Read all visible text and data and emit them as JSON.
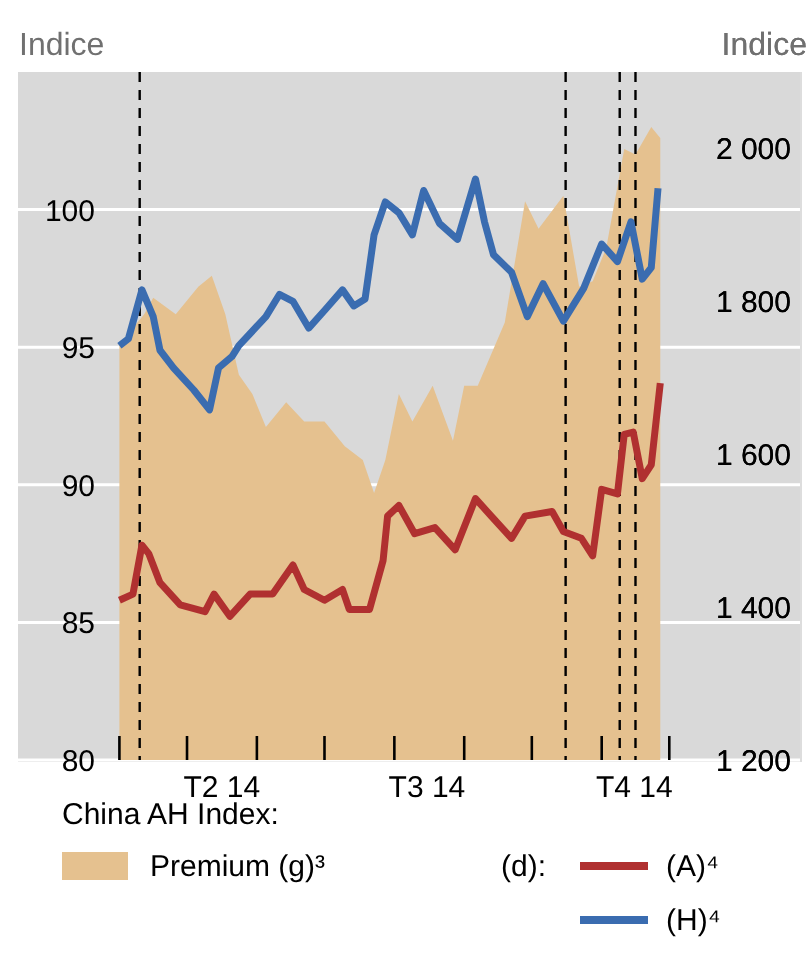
{
  "chart_data": {
    "type": "line",
    "ylabel": "Indice",
    "y2label": "Indice",
    "legend_title": "China AH Index:",
    "annotations": [
      "(d):"
    ],
    "xlim": [
      "2014-02-15",
      "2015-01-28"
    ],
    "xticks": [
      {
        "value": "2014-04-01",
        "label": null
      },
      {
        "value": "2014-05-01",
        "label": null
      },
      {
        "value": "2014-05-16",
        "label": "T2 14"
      },
      {
        "value": "2014-06-01",
        "label": null
      },
      {
        "value": "2014-07-01",
        "label": null
      },
      {
        "value": "2014-08-01",
        "label": null
      },
      {
        "value": "2014-08-15",
        "label": "T3 14"
      },
      {
        "value": "2014-09-01",
        "label": null
      },
      {
        "value": "2014-10-01",
        "label": null
      },
      {
        "value": "2014-11-01",
        "label": null
      },
      {
        "value": "2014-11-15",
        "label": "T4 14"
      },
      {
        "value": "2014-12-01",
        "label": null
      }
    ],
    "ylim": [
      80,
      105
    ],
    "yticks": [
      80,
      85,
      90,
      95,
      100
    ],
    "y2lim": [
      1200,
      2100
    ],
    "y2ticks": [
      {
        "value": 1200,
        "label": "1 200"
      },
      {
        "value": 1400,
        "label": "1 400"
      },
      {
        "value": 1600,
        "label": "1 600"
      },
      {
        "value": 1800,
        "label": "1 800"
      },
      {
        "value": 2000,
        "label": "2 000"
      }
    ],
    "grid": "y",
    "legend": "bottom",
    "line_style": "solid",
    "ref_lines": [
      {
        "axis": "x",
        "value": "2014-04-10",
        "color": "#000000",
        "line_style": "dashed"
      },
      {
        "axis": "x",
        "value": "2014-10-16",
        "color": "#000000",
        "line_style": "dashed"
      },
      {
        "axis": "x",
        "value": "2014-11-09",
        "color": "#000000",
        "line_style": "dashed"
      },
      {
        "axis": "x",
        "value": "2014-11-16",
        "color": "#000000",
        "line_style": "dashed"
      }
    ],
    "series": [
      {
        "name": "Premium (g)³",
        "type": "area",
        "color": "#e5c18f",
        "x": [
          "2014-04-01",
          "2014-04-12",
          "2014-04-16",
          "2014-04-26",
          "2014-05-06",
          "2014-05-12",
          "2014-05-18",
          "2014-05-24",
          "2014-05-30",
          "2014-06-05",
          "2014-06-14",
          "2014-06-22",
          "2014-07-01",
          "2014-07-10",
          "2014-07-18",
          "2014-07-23",
          "2014-07-28",
          "2014-08-03",
          "2014-08-09",
          "2014-08-18",
          "2014-08-27",
          "2014-09-01",
          "2014-09-07",
          "2014-09-19",
          "2014-09-28",
          "2014-10-04",
          "2014-10-15",
          "2014-10-22",
          "2014-10-28",
          "2014-11-03",
          "2014-11-11",
          "2014-11-16",
          "2014-11-23",
          "2014-11-27"
        ],
        "values": [
          95.1,
          96.2,
          96.8,
          96.2,
          97.2,
          97.6,
          96.2,
          94.0,
          93.3,
          92.1,
          93.0,
          92.3,
          92.3,
          91.4,
          90.9,
          89.7,
          90.9,
          93.3,
          92.3,
          93.6,
          91.6,
          93.6,
          93.6,
          95.9,
          100.3,
          99.3,
          100.5,
          97.2,
          97.4,
          98.6,
          102.2,
          102.0,
          103.0,
          102.6
        ]
      },
      {
        "name": "(A)⁴",
        "axis": "y2",
        "color": "#b03030",
        "x": [
          "2014-04-01",
          "2014-04-07",
          "2014-04-11",
          "2014-04-14",
          "2014-04-19",
          "2014-04-28",
          "2014-05-09",
          "2014-05-13",
          "2014-05-20",
          "2014-05-29",
          "2014-06-08",
          "2014-06-17",
          "2014-06-22",
          "2014-07-01",
          "2014-07-09",
          "2014-07-12",
          "2014-07-21",
          "2014-07-27",
          "2014-07-29",
          "2014-08-03",
          "2014-08-10",
          "2014-08-19",
          "2014-08-28",
          "2014-09-06",
          "2014-09-13",
          "2014-09-22",
          "2014-09-28",
          "2014-10-10",
          "2014-10-15",
          "2014-10-23",
          "2014-10-28",
          "2014-11-01",
          "2014-11-08",
          "2014-11-11",
          "2014-11-15",
          "2014-11-19",
          "2014-11-23",
          "2014-11-27"
        ],
        "values": [
          1409,
          1417,
          1481,
          1470,
          1432,
          1403,
          1394,
          1417,
          1388,
          1417,
          1417,
          1455,
          1423,
          1409,
          1423,
          1397,
          1397,
          1461,
          1519,
          1533,
          1496,
          1504,
          1475,
          1542,
          1519,
          1490,
          1519,
          1525,
          1499,
          1490,
          1467,
          1554,
          1548,
          1626,
          1629,
          1568,
          1586,
          1693
        ]
      },
      {
        "name": "(H)⁴",
        "axis": "y2",
        "color": "#3a6cb0",
        "x": [
          "2014-04-01",
          "2014-04-05",
          "2014-04-11",
          "2014-04-16",
          "2014-04-19",
          "2014-04-25",
          "2014-05-04",
          "2014-05-11",
          "2014-05-15",
          "2014-05-21",
          "2014-05-24",
          "2014-06-05",
          "2014-06-11",
          "2014-06-17",
          "2014-06-24",
          "2014-07-01",
          "2014-07-09",
          "2014-07-14",
          "2014-07-19",
          "2014-07-23",
          "2014-07-28",
          "2014-08-03",
          "2014-08-09",
          "2014-08-14",
          "2014-08-21",
          "2014-08-29",
          "2014-09-06",
          "2014-09-10",
          "2014-09-14",
          "2014-09-22",
          "2014-09-29",
          "2014-10-06",
          "2014-10-15",
          "2014-10-24",
          "2014-11-01",
          "2014-11-08",
          "2014-11-14",
          "2014-11-19",
          "2014-11-23",
          "2014-11-26"
        ],
        "values": [
          1742,
          1751,
          1815,
          1780,
          1736,
          1713,
          1684,
          1658,
          1713,
          1728,
          1742,
          1780,
          1809,
          1800,
          1765,
          1788,
          1815,
          1794,
          1803,
          1887,
          1930,
          1916,
          1887,
          1945,
          1902,
          1881,
          1960,
          1904,
          1861,
          1838,
          1780,
          1823,
          1774,
          1817,
          1875,
          1852,
          1904,
          1829,
          1844,
          1948
        ]
      }
    ]
  }
}
